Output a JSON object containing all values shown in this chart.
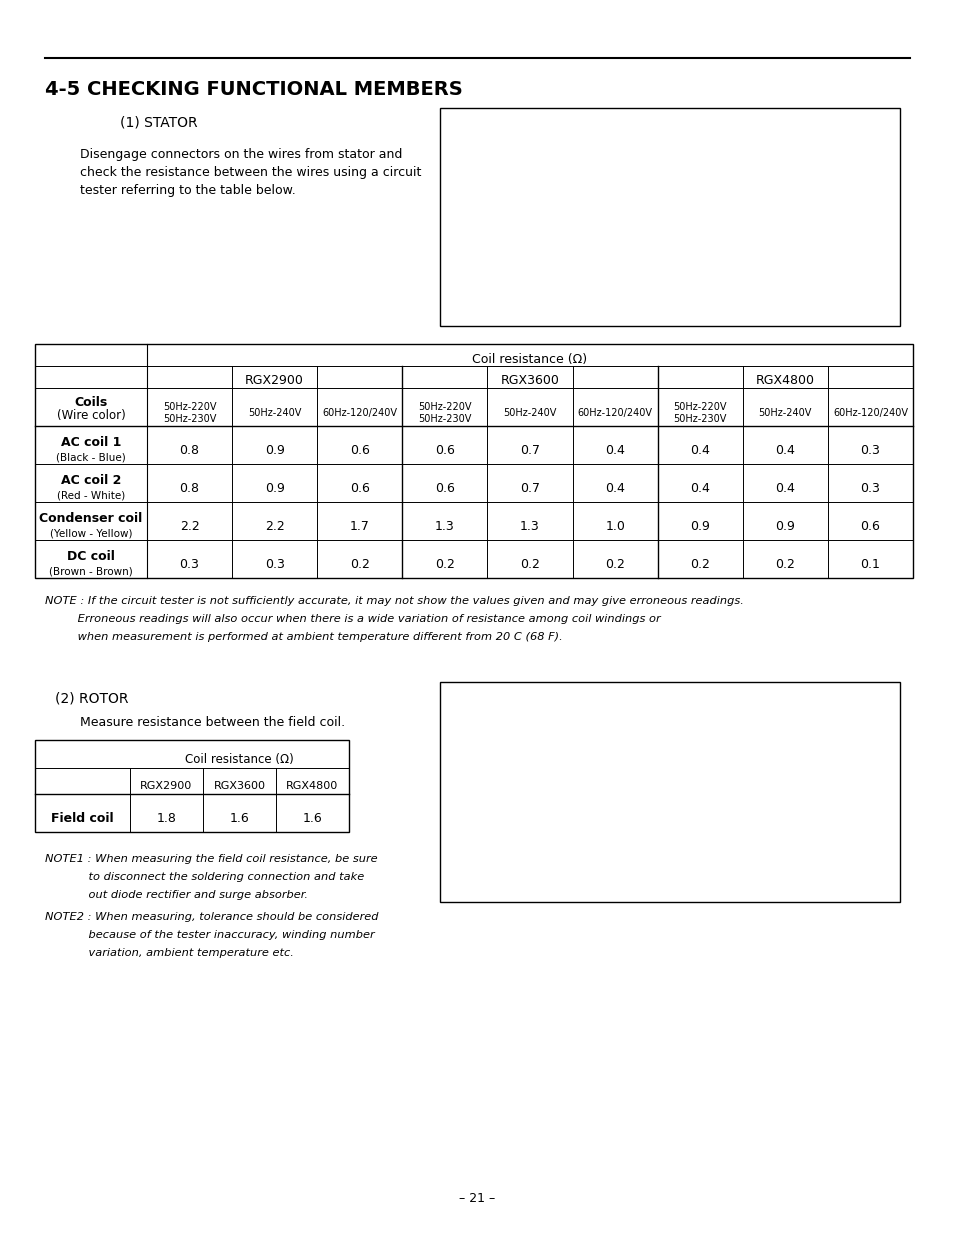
{
  "bg_color": "#ffffff",
  "page_width": 9.54,
  "page_height": 12.35,
  "title": "4-5 CHECKING FUNCTIONAL MEMBERS",
  "section1_label": "(1) STATOR",
  "section1_text_line1": "Disengage connectors on the wires from stator and",
  "section1_text_line2": "check the resistance between the wires using a circuit",
  "section1_text_line3": "tester referring to the table below.",
  "table1_header_top": "Coil resistance (Ω)",
  "table1_subheaders": [
    "RGX2900",
    "RGX3600",
    "RGX4800"
  ],
  "table1_col_labels": [
    "50Hz-220V\n50Hz-230V",
    "50Hz-240V",
    "60Hz-120/240V",
    "50Hz-220V\n50Hz-230V",
    "50Hz-240V",
    "60Hz-120/240V",
    "50Hz-220V\n50Hz-230V",
    "50Hz-240V",
    "60Hz-120/240V"
  ],
  "table1_row_labels_bold": [
    "AC coil 1",
    "AC coil 2",
    "Condenser coil",
    "DC coil"
  ],
  "table1_row_labels_sub": [
    "(Black - Blue)",
    "(Red - White)",
    "(Yellow - Yellow)",
    "(Brown - Brown)"
  ],
  "table1_data": [
    [
      0.8,
      0.9,
      0.6,
      0.6,
      0.7,
      0.4,
      0.4,
      0.4,
      0.3
    ],
    [
      0.8,
      0.9,
      0.6,
      0.6,
      0.7,
      0.4,
      0.4,
      0.4,
      0.3
    ],
    [
      2.2,
      2.2,
      1.7,
      1.3,
      1.3,
      1.0,
      0.9,
      0.9,
      0.6
    ],
    [
      0.3,
      0.3,
      0.2,
      0.2,
      0.2,
      0.2,
      0.2,
      0.2,
      0.1
    ]
  ],
  "note_line1": "NOTE : If the circuit tester is not sufficiently accurate, it may not show the values given and may give erroneous readings.",
  "note_line2": "         Erroneous readings will also occur when there is a wide variation of resistance among coil windings or",
  "note_line3": "         when measurement is performed at ambient temperature different from 20 C (68 F).",
  "section2_label": "(2) ROTOR",
  "section2_text": "Measure resistance between the field coil.",
  "table2_header": "Coil resistance (Ω)",
  "table2_col_labels": [
    "RGX2900",
    "RGX3600",
    "RGX4800"
  ],
  "table2_row_label": "Field coil",
  "table2_data": [
    1.8,
    1.6,
    1.6
  ],
  "note1_line1": "NOTE1 : When measuring the field coil resistance, be sure",
  "note1_line2": "            to disconnect the soldering connection and take",
  "note1_line3": "            out diode rectifier and surge absorber.",
  "note2_line1": "NOTE2 : When measuring, tolerance should be considered",
  "note2_line2": "            because of the tester inaccuracy, winding number",
  "note2_line3": "            variation, ambient temperature etc.",
  "page_number": "– 21 –",
  "coils_bold": "Coils",
  "coils_sub": "(Wire color)"
}
